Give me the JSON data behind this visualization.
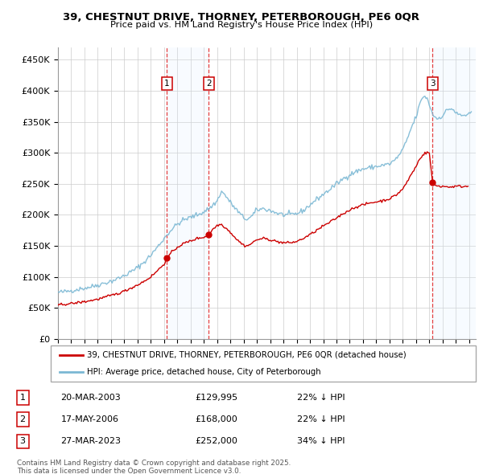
{
  "title1": "39, CHESTNUT DRIVE, THORNEY, PETERBOROUGH, PE6 0QR",
  "title2": "Price paid vs. HM Land Registry's House Price Index (HPI)",
  "ylabel_ticks": [
    "£0",
    "£50K",
    "£100K",
    "£150K",
    "£200K",
    "£250K",
    "£300K",
    "£350K",
    "£400K",
    "£450K"
  ],
  "ytick_values": [
    0,
    50000,
    100000,
    150000,
    200000,
    250000,
    300000,
    350000,
    400000,
    450000
  ],
  "ylim": [
    0,
    470000
  ],
  "xlim_start": 1995.0,
  "xlim_end": 2026.5,
  "sale_markers": [
    {
      "num": 1,
      "date_x": 2003.22,
      "price": 129995,
      "label": "20-MAR-2003",
      "price_str": "£129,995",
      "pct": "22%"
    },
    {
      "num": 2,
      "date_x": 2006.38,
      "price": 168000,
      "label": "17-MAY-2006",
      "price_str": "£168,000",
      "pct": "22%"
    },
    {
      "num": 3,
      "date_x": 2023.24,
      "price": 252000,
      "label": "27-MAR-2023",
      "price_str": "£252,000",
      "pct": "34%"
    }
  ],
  "legend_line1": "39, CHESTNUT DRIVE, THORNEY, PETERBOROUGH, PE6 0QR (detached house)",
  "legend_line2": "HPI: Average price, detached house, City of Peterborough",
  "footer1": "Contains HM Land Registry data © Crown copyright and database right 2025.",
  "footer2": "This data is licensed under the Open Government Licence v3.0.",
  "hpi_color": "#7bb8d4",
  "sale_color": "#cc0000",
  "background_color": "#ffffff",
  "grid_color": "#cccccc",
  "shade_color": "#ddeeff",
  "hpi_anchors": [
    [
      1995.0,
      75000
    ],
    [
      1995.5,
      76000
    ],
    [
      1996.0,
      78000
    ],
    [
      1996.5,
      80000
    ],
    [
      1997.0,
      82000
    ],
    [
      1997.5,
      84000
    ],
    [
      1998.0,
      87000
    ],
    [
      1998.5,
      90000
    ],
    [
      1999.0,
      93000
    ],
    [
      1999.5,
      97000
    ],
    [
      2000.0,
      102000
    ],
    [
      2000.5,
      108000
    ],
    [
      2001.0,
      115000
    ],
    [
      2001.5,
      124000
    ],
    [
      2002.0,
      135000
    ],
    [
      2002.5,
      148000
    ],
    [
      2003.0,
      162000
    ],
    [
      2003.5,
      175000
    ],
    [
      2004.0,
      185000
    ],
    [
      2004.5,
      192000
    ],
    [
      2005.0,
      196000
    ],
    [
      2005.5,
      200000
    ],
    [
      2006.0,
      205000
    ],
    [
      2006.5,
      212000
    ],
    [
      2007.0,
      222000
    ],
    [
      2007.3,
      238000
    ],
    [
      2007.6,
      232000
    ],
    [
      2008.0,
      220000
    ],
    [
      2008.5,
      207000
    ],
    [
      2009.0,
      195000
    ],
    [
      2009.3,
      193000
    ],
    [
      2009.6,
      197000
    ],
    [
      2010.0,
      208000
    ],
    [
      2010.5,
      210000
    ],
    [
      2011.0,
      207000
    ],
    [
      2011.5,
      203000
    ],
    [
      2012.0,
      200000
    ],
    [
      2012.5,
      200000
    ],
    [
      2013.0,
      202000
    ],
    [
      2013.5,
      207000
    ],
    [
      2014.0,
      216000
    ],
    [
      2014.5,
      225000
    ],
    [
      2015.0,
      233000
    ],
    [
      2015.5,
      241000
    ],
    [
      2016.0,
      250000
    ],
    [
      2016.5,
      258000
    ],
    [
      2017.0,
      265000
    ],
    [
      2017.5,
      270000
    ],
    [
      2018.0,
      274000
    ],
    [
      2018.5,
      276000
    ],
    [
      2019.0,
      278000
    ],
    [
      2019.5,
      280000
    ],
    [
      2020.0,
      282000
    ],
    [
      2020.5,
      290000
    ],
    [
      2021.0,
      305000
    ],
    [
      2021.3,
      320000
    ],
    [
      2021.6,
      338000
    ],
    [
      2022.0,
      358000
    ],
    [
      2022.3,
      380000
    ],
    [
      2022.6,
      393000
    ],
    [
      2022.9,
      385000
    ],
    [
      2023.0,
      378000
    ],
    [
      2023.2,
      365000
    ],
    [
      2023.4,
      358000
    ],
    [
      2023.6,
      355000
    ],
    [
      2024.0,
      360000
    ],
    [
      2024.3,
      368000
    ],
    [
      2024.6,
      372000
    ],
    [
      2024.9,
      368000
    ],
    [
      2025.0,
      363000
    ],
    [
      2025.5,
      360000
    ],
    [
      2026.0,
      362000
    ]
  ],
  "sale_anchors": [
    [
      1995.0,
      55000
    ],
    [
      1995.5,
      56000
    ],
    [
      1996.0,
      57000
    ],
    [
      1996.5,
      58500
    ],
    [
      1997.0,
      60000
    ],
    [
      1997.5,
      62000
    ],
    [
      1998.0,
      64000
    ],
    [
      1998.5,
      67000
    ],
    [
      1999.0,
      70000
    ],
    [
      1999.5,
      73000
    ],
    [
      2000.0,
      77000
    ],
    [
      2000.5,
      82000
    ],
    [
      2001.0,
      87000
    ],
    [
      2001.5,
      93000
    ],
    [
      2002.0,
      100000
    ],
    [
      2002.5,
      110000
    ],
    [
      2003.0,
      121000
    ],
    [
      2003.22,
      129995
    ],
    [
      2003.5,
      138000
    ],
    [
      2004.0,
      148000
    ],
    [
      2004.5,
      154000
    ],
    [
      2005.0,
      158000
    ],
    [
      2005.5,
      162000
    ],
    [
      2006.0,
      164000
    ],
    [
      2006.38,
      168000
    ],
    [
      2006.6,
      175000
    ],
    [
      2007.0,
      183000
    ],
    [
      2007.3,
      185000
    ],
    [
      2007.6,
      180000
    ],
    [
      2008.0,
      172000
    ],
    [
      2008.5,
      160000
    ],
    [
      2009.0,
      151000
    ],
    [
      2009.3,
      150000
    ],
    [
      2009.6,
      154000
    ],
    [
      2010.0,
      160000
    ],
    [
      2010.5,
      162000
    ],
    [
      2011.0,
      160000
    ],
    [
      2011.5,
      157000
    ],
    [
      2012.0,
      155000
    ],
    [
      2012.5,
      155000
    ],
    [
      2013.0,
      157000
    ],
    [
      2013.5,
      162000
    ],
    [
      2014.0,
      168000
    ],
    [
      2014.5,
      175000
    ],
    [
      2015.0,
      182000
    ],
    [
      2015.5,
      188000
    ],
    [
      2016.0,
      195000
    ],
    [
      2016.5,
      202000
    ],
    [
      2017.0,
      208000
    ],
    [
      2017.5,
      213000
    ],
    [
      2018.0,
      216000
    ],
    [
      2018.5,
      219000
    ],
    [
      2019.0,
      221000
    ],
    [
      2019.5,
      223000
    ],
    [
      2020.0,
      226000
    ],
    [
      2020.5,
      232000
    ],
    [
      2021.0,
      242000
    ],
    [
      2021.3,
      252000
    ],
    [
      2021.6,
      264000
    ],
    [
      2022.0,
      278000
    ],
    [
      2022.3,
      292000
    ],
    [
      2022.7,
      300000
    ],
    [
      2023.0,
      300000
    ],
    [
      2023.24,
      252000
    ],
    [
      2023.5,
      247000
    ],
    [
      2024.0,
      246000
    ],
    [
      2024.5,
      245000
    ],
    [
      2025.0,
      246000
    ],
    [
      2025.5,
      246000
    ]
  ]
}
